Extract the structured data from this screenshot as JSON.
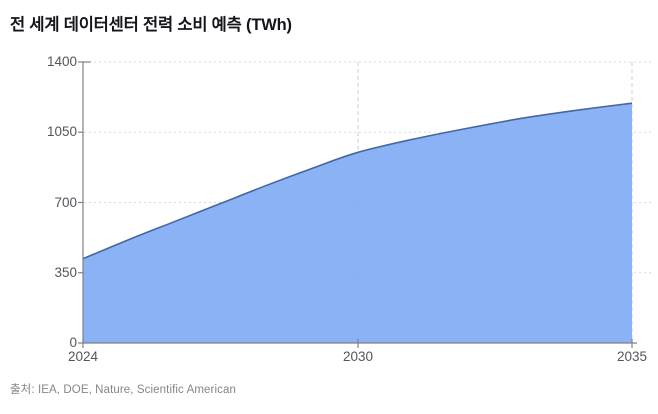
{
  "title": "전 세계 데이터센터 전력 소비 예측 (TWh)",
  "source": "출처: IEA, DOE, Nature, Scientific American",
  "chart_data": {
    "type": "area",
    "title": "전 세계 데이터센터 전력 소비 예측 (TWh)",
    "ylabel": "TWh",
    "x": [
      2024,
      2025,
      2026,
      2027,
      2028,
      2029,
      2030,
      2031,
      2032,
      2033,
      2034,
      2035
    ],
    "values": [
      420,
      515,
      605,
      695,
      785,
      870,
      950,
      1015,
      1070,
      1120,
      1160,
      1195
    ],
    "series_name": "데이터센터 전력 소비",
    "ylim": [
      0,
      1400
    ],
    "y_ticks": [
      0,
      350,
      700,
      1050,
      1400
    ],
    "x_ticks": [
      2024,
      2030,
      2035
    ],
    "grid": true,
    "legend": "none",
    "colors": {
      "area_fill": "#7daaf4",
      "line": "#47669e",
      "grid_dotted": "#d8d8d8",
      "grid_dashed": "#cfcfd4",
      "axis": "#80808a",
      "tick_text": "#55555e",
      "title_text": "#15151d",
      "source_text": "#85858c"
    }
  }
}
